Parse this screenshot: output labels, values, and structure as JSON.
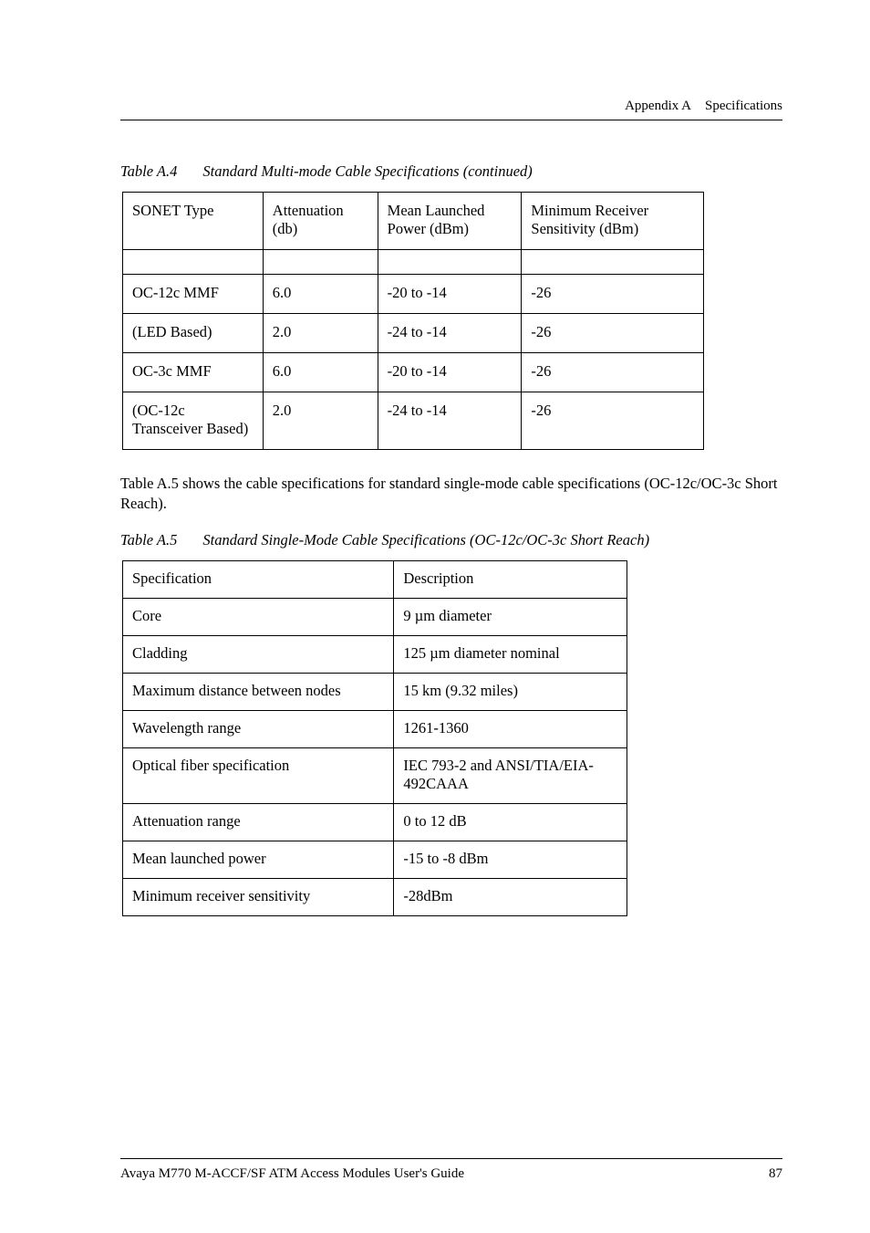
{
  "header": {
    "appendix_label": "Appendix A",
    "section_title": "Specifications"
  },
  "table_a4": {
    "caption_label": "Table A.4",
    "caption_text": "Standard Multi-mode Cable Specifications (continued)",
    "columns": [
      "SONET Type",
      "Attenuation (db)",
      "Mean Launched Power (dBm)",
      "Minimum Receiver Sensitivity (dBm)"
    ],
    "rows": [
      [
        "OC-12c MMF",
        "6.0",
        "-20 to -14",
        "-26"
      ],
      [
        "(LED Based)",
        "2.0",
        "-24 to -14",
        "-26"
      ],
      [
        "OC-3c MMF",
        "6.0",
        "-20 to -14",
        "-26"
      ],
      [
        "(OC-12c Transceiver Based)",
        "2.0",
        "-24 to -14",
        "-26"
      ]
    ]
  },
  "paragraph": "Table A.5 shows the cable specifications for standard single-mode cable specifications (OC-12c/OC-3c Short Reach).",
  "table_a5": {
    "caption_label": "Table A.5",
    "caption_text": "Standard Single-Mode Cable Specifications (OC-12c/OC-3c Short Reach)",
    "columns": [
      "Specification",
      "Description"
    ],
    "rows": [
      [
        "Core",
        "9 µm diameter"
      ],
      [
        "Cladding",
        "125 µm diameter nominal"
      ],
      [
        "Maximum distance between nodes",
        "15 km (9.32 miles)"
      ],
      [
        "Wavelength range",
        "1261-1360"
      ],
      [
        "Optical fiber specification",
        "IEC 793-2 and ANSI/TIA/EIA-492CAAA"
      ],
      [
        "Attenuation range",
        "0 to 12 dB"
      ],
      [
        "Mean launched power",
        "-15 to -8 dBm"
      ],
      [
        "Minimum receiver sensitivity",
        "-28dBm"
      ]
    ]
  },
  "footer": {
    "doc_title": "Avaya M770 M-ACCF/SF ATM Access Modules User's Guide",
    "page_number": "87"
  }
}
